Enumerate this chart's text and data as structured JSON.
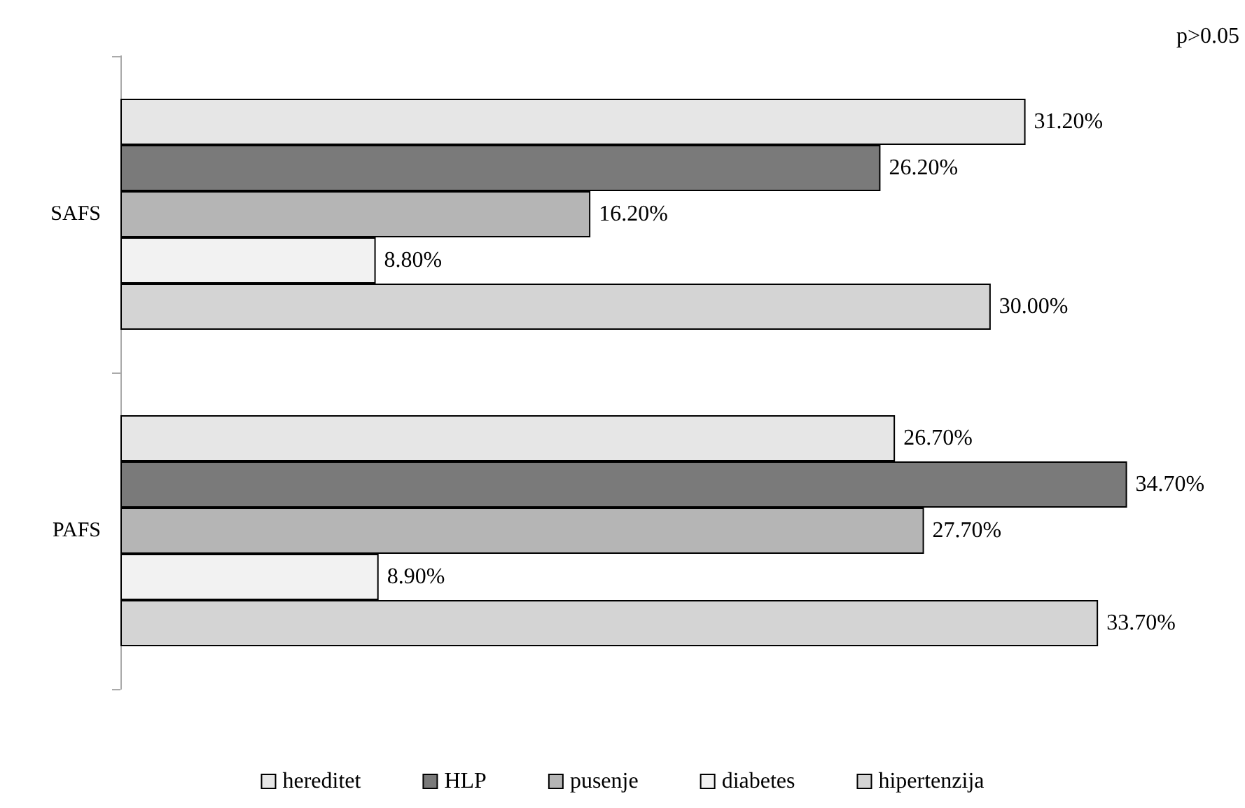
{
  "chart_data": {
    "type": "bar",
    "orientation": "horizontal",
    "categories": [
      "SAFS",
      "PAFS"
    ],
    "series": [
      {
        "name": "hereditet",
        "color": "#e6e6e6",
        "values": [
          31.2,
          26.7
        ],
        "value_labels": [
          "31.20%",
          "26.70%"
        ]
      },
      {
        "name": "HLP",
        "color": "#7a7a7a",
        "values": [
          26.2,
          34.7
        ],
        "value_labels": [
          "26.20%",
          "34.70%"
        ]
      },
      {
        "name": "pusenje",
        "color": "#b5b5b5",
        "values": [
          16.2,
          27.7
        ],
        "value_labels": [
          "16.20%",
          "27.70%"
        ]
      },
      {
        "name": "diabetes",
        "color": "#f2f2f2",
        "values": [
          8.8,
          8.9
        ],
        "value_labels": [
          "8.80%",
          "8.90%"
        ]
      },
      {
        "name": "hipertenzija",
        "color": "#d4d4d4",
        "values": [
          30.0,
          33.7
        ],
        "value_labels": [
          "30.00%",
          "33.70%"
        ]
      }
    ],
    "annotations": [
      "p>0.05"
    ],
    "legend": "bottom",
    "tick_labels": "y"
  }
}
